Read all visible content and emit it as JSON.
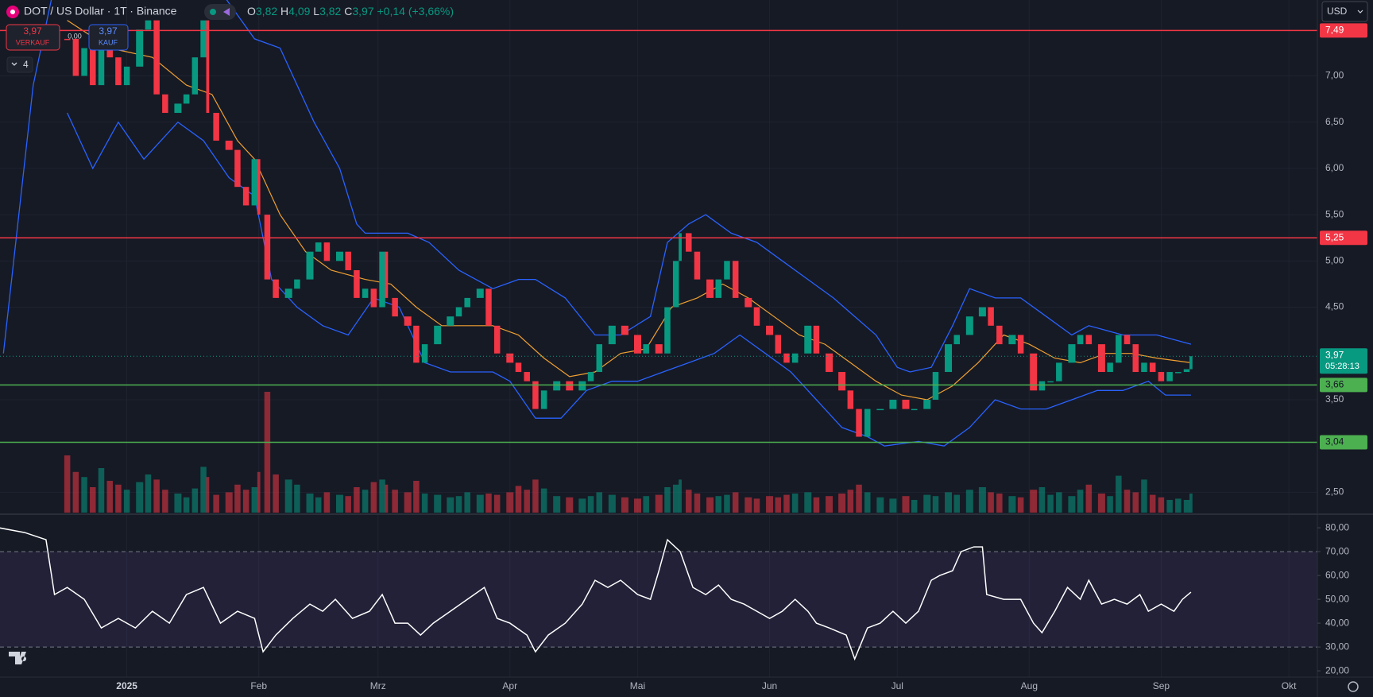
{
  "header": {
    "symbol": "DOT / US Dollar · 1T · Binance",
    "ohlc": [
      {
        "key": "O",
        "value": "3,82"
      },
      {
        "key": "H",
        "value": "4,09"
      },
      {
        "key": "L",
        "value": "3,82"
      },
      {
        "key": "C",
        "value": "3,97"
      }
    ],
    "change": "+0,14 (+3,66%)",
    "sell": {
      "price": "3,97",
      "label": "VERKAUF"
    },
    "spread": "0,00",
    "buy": {
      "price": "3,97",
      "label": "KAUF"
    },
    "indicators": "4",
    "currency": "USD"
  },
  "chart_data": [
    {
      "type": "candlestick",
      "x": [
        0,
        2,
        4,
        6,
        8,
        10,
        12,
        14,
        17,
        19,
        21,
        23,
        26,
        28,
        30,
        32,
        33,
        35,
        38,
        40,
        42,
        44,
        45,
        47,
        49,
        52,
        54,
        57,
        59,
        61,
        64,
        66,
        68,
        70,
        72,
        74,
        75,
        77,
        80,
        82,
        84,
        87,
        90,
        92,
        94,
        97,
        99,
        101,
        104,
        106,
        108,
        110,
        112,
        115,
        118,
        121,
        123,
        125,
        128,
        131,
        134,
        136,
        139,
        141,
        143,
        144,
        146,
        148,
        151,
        153,
        155,
        157,
        160,
        162,
        165,
        167,
        169,
        171,
        174,
        176,
        179,
        182,
        184,
        186,
        188,
        191,
        194,
        197,
        199,
        202,
        204,
        207,
        209,
        212,
        215,
        217,
        219,
        222,
        224,
        227,
        229,
        231,
        233,
        236,
        238,
        240,
        243,
        245,
        247,
        249,
        251,
        253,
        255,
        257,
        259,
        261,
        263,
        264
      ],
      "series": [
        {
          "name": "close",
          "up_color": "#089981",
          "down_color": "#f23645",
          "values": [
            7.4,
            7.0,
            7.3,
            6.9,
            7.5,
            7.2,
            6.9,
            7.1,
            7.5,
            7.6,
            6.8,
            6.6,
            6.7,
            6.8,
            7.2,
            7.6,
            6.6,
            6.3,
            6.2,
            5.8,
            5.6,
            6.1,
            5.5,
            4.8,
            4.6,
            4.7,
            4.8,
            5.1,
            5.2,
            5.0,
            5.1,
            4.9,
            4.6,
            4.7,
            4.5,
            5.1,
            4.6,
            4.4,
            4.3,
            3.9,
            4.1,
            4.3,
            4.4,
            4.5,
            4.6,
            4.7,
            4.3,
            4.0,
            3.9,
            3.8,
            3.7,
            3.4,
            3.6,
            3.7,
            3.6,
            3.7,
            3.8,
            4.1,
            4.3,
            4.2,
            4.0,
            4.1,
            4.0,
            4.5,
            5.0,
            5.3,
            5.1,
            4.8,
            4.6,
            4.8,
            5.0,
            4.6,
            4.5,
            4.3,
            4.2,
            4.0,
            3.9,
            4.0,
            4.3,
            4.0,
            3.8,
            3.6,
            3.4,
            3.1,
            3.4,
            3.4,
            3.5,
            3.4,
            3.4,
            3.5,
            3.8,
            4.1,
            4.2,
            4.4,
            4.5,
            4.3,
            4.1,
            4.2,
            4.0,
            3.6,
            3.7,
            3.7,
            3.9,
            4.1,
            4.2,
            4.1,
            3.8,
            3.9,
            4.2,
            4.1,
            3.8,
            3.9,
            3.8,
            3.7,
            3.8,
            3.8,
            3.83,
            3.97
          ]
        }
      ],
      "volume": {
        "vlim": [
          0,
          10
        ],
        "values": [
          4.5,
          3.2,
          2.8,
          2.0,
          3.5,
          2.5,
          2.2,
          1.8,
          2.4,
          3.0,
          2.6,
          1.8,
          1.5,
          1.2,
          1.9,
          3.6,
          2.8,
          1.4,
          1.6,
          2.2,
          1.8,
          2.0,
          3.2,
          9.5,
          3.0,
          2.6,
          2.2,
          1.5,
          1.2,
          1.6,
          1.4,
          1.3,
          2.0,
          1.8,
          2.4,
          2.6,
          2.2,
          1.8,
          1.6,
          2.5,
          1.5,
          1.4,
          1.2,
          1.3,
          1.6,
          1.4,
          1.5,
          1.4,
          1.6,
          2.1,
          1.8,
          2.6,
          1.9,
          1.3,
          1.2,
          1.1,
          1.3,
          1.6,
          1.4,
          1.2,
          1.1,
          1.3,
          1.4,
          2.0,
          2.2,
          2.6,
          1.8,
          1.5,
          1.2,
          1.3,
          1.4,
          1.6,
          1.2,
          1.1,
          1.3,
          1.2,
          1.4,
          1.5,
          1.6,
          1.2,
          1.3,
          1.5,
          1.8,
          2.2,
          1.6,
          1.2,
          1.1,
          1.3,
          1.0,
          1.4,
          1.3,
          1.6,
          1.4,
          1.8,
          2.0,
          1.6,
          1.5,
          1.3,
          1.2,
          1.8,
          2.0,
          1.4,
          1.6,
          1.3,
          1.8,
          2.2,
          1.5,
          1.3,
          2.9,
          1.8,
          1.6,
          2.6,
          1.4,
          1.2,
          1.0,
          1.1,
          1.0,
          1.5
        ]
      },
      "bands": {
        "color": "#2962ff",
        "upper": {
          "x": [
            -15,
            -8,
            -2,
            30,
            44,
            50,
            58,
            64,
            68,
            70,
            80,
            85,
            92,
            100,
            106,
            110,
            117,
            124,
            130,
            137,
            141,
            146,
            150,
            156,
            162,
            168,
            174,
            180,
            185,
            190,
            195,
            198,
            203,
            208,
            212,
            218,
            224,
            230,
            236,
            240,
            248,
            256,
            264
          ],
          "values": [
            4.0,
            6.9,
            8.2,
            8.3,
            7.4,
            7.3,
            6.5,
            6.0,
            5.4,
            5.3,
            5.3,
            5.2,
            4.9,
            4.7,
            4.8,
            4.8,
            4.6,
            4.2,
            4.2,
            4.4,
            5.2,
            5.4,
            5.5,
            5.3,
            5.2,
            5.0,
            4.8,
            4.6,
            4.4,
            4.2,
            3.85,
            3.8,
            3.85,
            4.3,
            4.7,
            4.6,
            4.6,
            4.4,
            4.2,
            4.3,
            4.2,
            4.2,
            4.1
          ]
        },
        "lower": {
          "x": [
            0,
            6,
            12,
            18,
            26,
            32,
            38,
            44,
            48,
            54,
            60,
            66,
            72,
            78,
            84,
            90,
            100,
            104,
            110,
            116,
            122,
            128,
            134,
            140,
            146,
            152,
            158,
            164,
            170,
            176,
            182,
            188,
            192,
            200,
            206,
            212,
            218,
            224,
            230,
            236,
            242,
            248,
            254,
            258,
            264
          ],
          "values": [
            6.6,
            6.0,
            6.5,
            6.1,
            6.5,
            6.3,
            5.9,
            5.7,
            4.8,
            4.5,
            4.3,
            4.2,
            4.6,
            4.5,
            3.9,
            3.8,
            3.8,
            3.7,
            3.3,
            3.3,
            3.6,
            3.7,
            3.7,
            3.8,
            3.9,
            4.0,
            4.2,
            4.0,
            3.8,
            3.5,
            3.2,
            3.1,
            3.0,
            3.05,
            3.0,
            3.2,
            3.5,
            3.4,
            3.4,
            3.5,
            3.6,
            3.6,
            3.7,
            3.55,
            3.55
          ]
        }
      },
      "ma": {
        "color": "#f0a030",
        "x": [
          0,
          10,
          20,
          28,
          34,
          40,
          44,
          50,
          56,
          62,
          70,
          76,
          82,
          88,
          94,
          100,
          106,
          112,
          118,
          124,
          130,
          136,
          142,
          148,
          154,
          160,
          166,
          172,
          178,
          184,
          190,
          196,
          202,
          208,
          214,
          220,
          226,
          232,
          238,
          244,
          250,
          256,
          264
        ],
        "values": [
          7.6,
          7.3,
          7.2,
          6.9,
          6.8,
          6.3,
          6.1,
          5.5,
          5.1,
          4.9,
          4.8,
          4.75,
          4.5,
          4.3,
          4.3,
          4.3,
          4.2,
          3.95,
          3.75,
          3.8,
          4.0,
          4.05,
          4.5,
          4.6,
          4.75,
          4.6,
          4.4,
          4.2,
          4.1,
          3.9,
          3.7,
          3.55,
          3.5,
          3.65,
          3.9,
          4.2,
          4.1,
          3.95,
          3.9,
          4.0,
          4.0,
          3.95,
          3.9
        ]
      },
      "levels": [
        {
          "value": 7.49,
          "label": "7,49",
          "color": "#f23645"
        },
        {
          "value": 5.25,
          "label": "5,25",
          "color": "#f23645"
        },
        {
          "value": 3.66,
          "label": "3,66",
          "color": "#4caf50"
        },
        {
          "value": 3.04,
          "label": "3,04",
          "color": "#4caf50"
        }
      ],
      "last_price": {
        "value": 3.97,
        "label": "3,97",
        "countdown": "05:28:13",
        "color": "#089981"
      },
      "xlim": [
        -15.8,
        293.7
      ],
      "xticks": [
        {
          "value": 14,
          "label": "2025"
        },
        {
          "value": 45,
          "label": "Feb"
        },
        {
          "value": 73,
          "label": "Mrz"
        },
        {
          "value": 104,
          "label": "Apr"
        },
        {
          "value": 134,
          "label": "Mai"
        },
        {
          "value": 165,
          "label": "Jun"
        },
        {
          "value": 195,
          "label": "Jul"
        },
        {
          "value": 226,
          "label": "Aug"
        },
        {
          "value": 257,
          "label": "Sep"
        },
        {
          "value": 287,
          "label": "Okt"
        }
      ],
      "ylim": [
        2.28,
        7.82
      ],
      "yticks": [
        {
          "value": 2.5,
          "label": "2,50"
        },
        {
          "value": 3.5,
          "label": "3,50"
        },
        {
          "value": 4.5,
          "label": "4,50"
        },
        {
          "value": 5.0,
          "label": "5,00"
        },
        {
          "value": 5.5,
          "label": "5,50"
        },
        {
          "value": 6.0,
          "label": "6,00"
        },
        {
          "value": 6.5,
          "label": "6,50"
        },
        {
          "value": 7.0,
          "label": "7,00"
        }
      ],
      "grid": true
    },
    {
      "type": "line",
      "x": [
        -16,
        -10,
        -5,
        -3,
        0,
        4,
        8,
        12,
        16,
        20,
        24,
        28,
        32,
        36,
        40,
        44,
        46,
        49,
        53,
        57,
        60,
        63,
        67,
        71,
        74,
        77,
        80,
        83,
        86,
        90,
        94,
        98,
        101,
        104,
        108,
        110,
        113,
        117,
        121,
        124,
        127,
        130,
        134,
        137,
        139,
        141,
        144,
        147,
        150,
        153,
        156,
        159,
        162,
        165,
        168,
        171,
        174,
        176,
        179,
        183,
        185,
        188,
        191,
        194,
        197,
        200,
        203,
        205,
        208,
        210,
        213,
        215,
        216,
        220,
        224,
        227,
        229,
        232,
        235,
        238,
        240,
        243,
        246,
        249,
        252,
        254,
        257,
        260,
        262,
        264
      ],
      "values": [
        80,
        78,
        75,
        52,
        55,
        50,
        38,
        42,
        38,
        45,
        40,
        52,
        55,
        40,
        45,
        42,
        28,
        35,
        42,
        48,
        45,
        50,
        42,
        45,
        52,
        40,
        40,
        35,
        40,
        45,
        50,
        55,
        42,
        40,
        35,
        28,
        35,
        40,
        48,
        58,
        55,
        58,
        52,
        50,
        62,
        75,
        70,
        55,
        52,
        56,
        50,
        48,
        45,
        42,
        45,
        50,
        45,
        40,
        38,
        35,
        25,
        38,
        40,
        45,
        40,
        45,
        58,
        60,
        62,
        70,
        72,
        72,
        52,
        50,
        50,
        40,
        36,
        45,
        55,
        50,
        58,
        48,
        50,
        48,
        52,
        45,
        48,
        45,
        50,
        53
      ],
      "color": "#ffffff",
      "xlim": [
        -15.8,
        293.7
      ],
      "ylim": [
        17.7,
        84.7
      ],
      "yticks": [
        {
          "value": 20,
          "label": "20,00"
        },
        {
          "value": 30,
          "label": "30,00"
        },
        {
          "value": 40,
          "label": "40,00"
        },
        {
          "value": 50,
          "label": "50,00"
        },
        {
          "value": 60,
          "label": "60,00"
        },
        {
          "value": 70,
          "label": "70,00"
        },
        {
          "value": 80,
          "label": "80,00"
        }
      ],
      "levels": [
        30,
        70
      ],
      "band_color": "#7e57c2"
    }
  ]
}
